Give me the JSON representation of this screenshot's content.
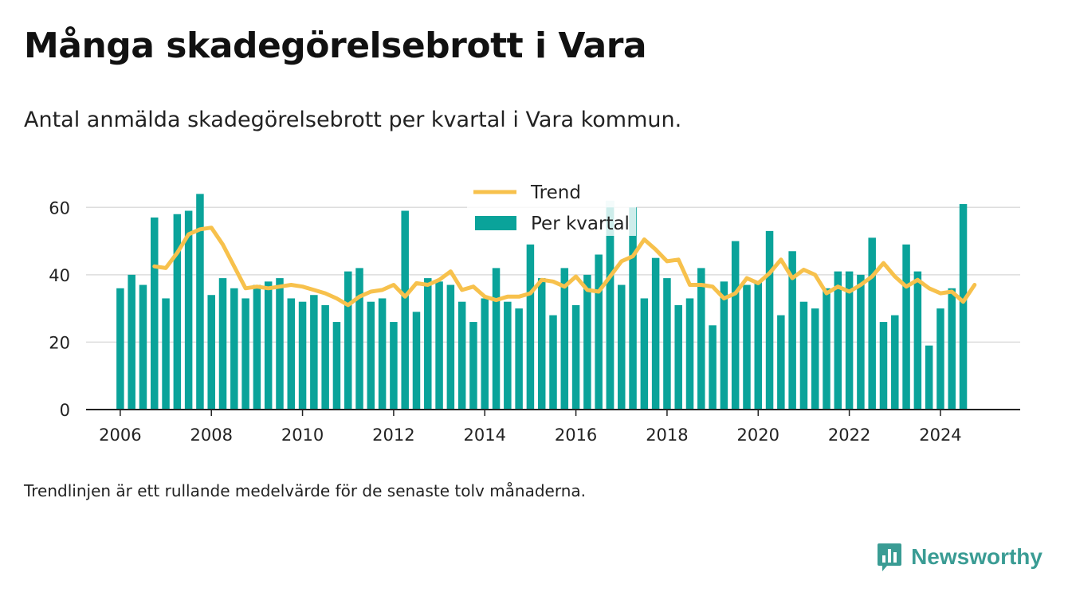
{
  "title": "Många skadegörelsebrott i Vara",
  "subtitle": "Antal anmälda skadegörelsebrott per kvartal i Vara kommun.",
  "footnote": "Trendlinjen är ett rullande medelvärde för de senaste tolv månaderna.",
  "brand": {
    "name": "Newsworthy",
    "icon": "newsworthy-logo-icon"
  },
  "colors": {
    "bars": "#0aa39a",
    "bar_highlight": "#c9ecea",
    "trend": "#f7c14c",
    "grid": "#dddddd",
    "axis": "#222222",
    "brand": "#3a9c94"
  },
  "chart_data": {
    "type": "bar",
    "x_is_quarter": true,
    "quarters": [
      "2006 Q1",
      "2006 Q2",
      "2006 Q3",
      "2006 Q4",
      "2007 Q1",
      "2007 Q2",
      "2007 Q3",
      "2007 Q4",
      "2008 Q1",
      "2008 Q2",
      "2008 Q3",
      "2008 Q4",
      "2009 Q1",
      "2009 Q2",
      "2009 Q3",
      "2009 Q4",
      "2010 Q1",
      "2010 Q2",
      "2010 Q3",
      "2010 Q4",
      "2011 Q1",
      "2011 Q2",
      "2011 Q3",
      "2011 Q4",
      "2012 Q1",
      "2012 Q2",
      "2012 Q3",
      "2012 Q4",
      "2013 Q1",
      "2013 Q2",
      "2013 Q3",
      "2013 Q4",
      "2014 Q1",
      "2014 Q2",
      "2014 Q3",
      "2014 Q4",
      "2015 Q1",
      "2015 Q2",
      "2015 Q3",
      "2015 Q4",
      "2016 Q1",
      "2016 Q2",
      "2016 Q3",
      "2016 Q4",
      "2017 Q1",
      "2017 Q2",
      "2017 Q3",
      "2017 Q4",
      "2018 Q1",
      "2018 Q2",
      "2018 Q3",
      "2018 Q4",
      "2019 Q1",
      "2019 Q2",
      "2019 Q3",
      "2019 Q4",
      "2020 Q1",
      "2020 Q2",
      "2020 Q3",
      "2020 Q4",
      "2021 Q1",
      "2021 Q2",
      "2021 Q3",
      "2021 Q4",
      "2022 Q1",
      "2022 Q2",
      "2022 Q3",
      "2022 Q4",
      "2023 Q1",
      "2023 Q2",
      "2023 Q3",
      "2023 Q4",
      "2024 Q1",
      "2024 Q2",
      "2024 Q3"
    ],
    "series": [
      {
        "name": "Per kvartal",
        "kind": "bar",
        "values": [
          36,
          40,
          37,
          57,
          33,
          58,
          59,
          64,
          34,
          39,
          36,
          33,
          37,
          38,
          39,
          33,
          32,
          34,
          31,
          26,
          41,
          42,
          32,
          33,
          26,
          59,
          29,
          39,
          38,
          37,
          32,
          26,
          33,
          42,
          32,
          30,
          49,
          39,
          28,
          42,
          31,
          40,
          46,
          60,
          37,
          60,
          33,
          45,
          39,
          31,
          33,
          42,
          25,
          38,
          50,
          37,
          38,
          53,
          28,
          47,
          32,
          30,
          36,
          41,
          41,
          40,
          51,
          26,
          28,
          49,
          41,
          19,
          30,
          36,
          61
        ]
      },
      {
        "name": "Trend",
        "kind": "line",
        "start_index": 3,
        "values": [
          42.5,
          42,
          46.5,
          52,
          53.5,
          54,
          49,
          42.5,
          36,
          36.5,
          36,
          36.5,
          37,
          36.5,
          35.5,
          34.5,
          33,
          31,
          33.5,
          35,
          35.5,
          37,
          33.5,
          37.5,
          37,
          38.5,
          41,
          35.5,
          36.5,
          33.5,
          32.5,
          33.5,
          33.5,
          34.5,
          38.5,
          38,
          36.5,
          39.5,
          35.5,
          35,
          39.5,
          44,
          45.5,
          50.5,
          47.5,
          44,
          44.5,
          37,
          37,
          36.5,
          33,
          34.5,
          39,
          37.5,
          40.5,
          44.5,
          39,
          41.5,
          40,
          34.5,
          36.5,
          35,
          37,
          39.5,
          43.5,
          39.5,
          36.5,
          38.5,
          36,
          34.5,
          35,
          32,
          37
        ]
      }
    ],
    "highlighted_quarter": "2016 Q4",
    "x_ticks": [
      "2006",
      "2008",
      "2010",
      "2012",
      "2014",
      "2016",
      "2018",
      "2020",
      "2022",
      "2024"
    ],
    "y_ticks": [
      0,
      20,
      40,
      60
    ],
    "ylim": [
      0,
      70
    ],
    "xlim": [
      2005.25,
      2025.75
    ],
    "grid": "horizontal",
    "legend": {
      "placement": "top-center",
      "entries": [
        "Trend",
        "Per kvartal"
      ]
    }
  }
}
